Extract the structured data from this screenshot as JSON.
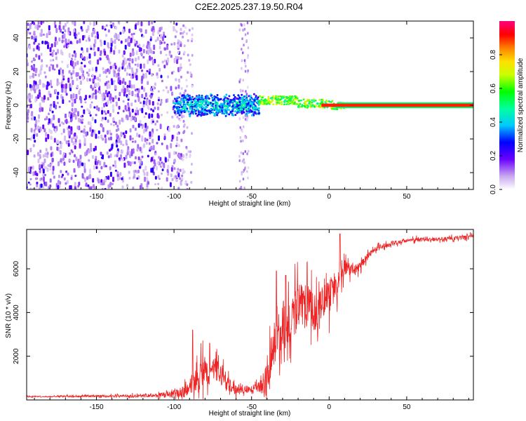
{
  "figure_title": "C2E2.2025.237.19.50.R04",
  "chart_data": [
    {
      "type": "heatmap",
      "title": "C2E2.2025.237.19.50.R04",
      "xlabel": "Height of straight line (km)",
      "ylabel": "Frequency (Hz)",
      "xlim": [
        -195,
        93
      ],
      "ylim": [
        -50,
        50
      ],
      "xticks": [
        -150,
        -100,
        -50,
        0,
        50
      ],
      "yticks": [
        -40,
        -20,
        0,
        20,
        40
      ],
      "colorbar": {
        "label": "Normalized spectral amplitude",
        "range": [
          0.0,
          1.0
        ],
        "ticks": [
          0.0,
          0.2,
          0.4,
          0.6,
          0.8
        ],
        "tick_labels": [
          "0.0",
          "0.2",
          "0.4",
          "0.6",
          "0.8"
        ],
        "colormap": "rainbow: white-violet-blue-cyan-green-yellow-red-magenta"
      },
      "regions": [
        {
          "name": "sparse noise",
          "x_range": [
            -195,
            -100
          ],
          "freq_range": [
            -50,
            50
          ],
          "amplitude": [
            0.05,
            0.25
          ]
        },
        {
          "name": "noise column",
          "x_range": [
            -58,
            -52
          ],
          "freq_range": [
            -50,
            50
          ],
          "amplitude": [
            0.05,
            0.15
          ]
        },
        {
          "name": "cluster",
          "x_range": [
            -100,
            -45
          ],
          "freq_range": [
            -6,
            6
          ],
          "amplitude": [
            0.2,
            0.5
          ]
        },
        {
          "name": "transition",
          "x_range": [
            -45,
            10
          ],
          "freq_range": [
            -3,
            6
          ],
          "amplitude": [
            0.5,
            0.8
          ]
        },
        {
          "name": "steady tone",
          "x_range": [
            10,
            93
          ],
          "freq_range": [
            -1,
            1
          ],
          "amplitude": [
            0.9,
            0.95
          ]
        }
      ]
    },
    {
      "type": "line",
      "xlabel": "Height of straight line (km)",
      "ylabel": "SNR (10 * v/v)",
      "xlim": [
        -195,
        93
      ],
      "ylim": [
        0,
        7800
      ],
      "xticks": [
        -150,
        -100,
        -50,
        0,
        50
      ],
      "yticks": [
        2000,
        4000,
        6000
      ],
      "series": [
        {
          "name": "SNR",
          "color": "#ee2222",
          "x": [
            -195,
            -180,
            -160,
            -140,
            -120,
            -110,
            -100,
            -95,
            -90,
            -88,
            -85,
            -82,
            -78,
            -74,
            -70,
            -66,
            -62,
            -58,
            -55,
            -50,
            -45,
            -42,
            -40,
            -38,
            -35,
            -32,
            -30,
            -27,
            -25,
            -22,
            -20,
            -17,
            -15,
            -12,
            -10,
            -8,
            -5,
            -3,
            0,
            3,
            5,
            7,
            10,
            15,
            20,
            25,
            30,
            35,
            40,
            50,
            60,
            70,
            80,
            93
          ],
          "y": [
            150,
            150,
            170,
            180,
            200,
            220,
            260,
            350,
            500,
            900,
            800,
            1300,
            1100,
            1500,
            1200,
            800,
            500,
            400,
            500,
            450,
            600,
            800,
            1300,
            1800,
            2600,
            3100,
            3500,
            3300,
            3300,
            4000,
            4300,
            4400,
            4300,
            4000,
            3900,
            4600,
            4300,
            4800,
            4700,
            5200,
            5000,
            5500,
            6100,
            5900,
            6100,
            6600,
            6900,
            7000,
            7150,
            7300,
            7350,
            7350,
            7380,
            7500
          ],
          "noise_amplitude": [
            40,
            40,
            60,
            80,
            120,
            150,
            300,
            400,
            600,
            900,
            1000,
            1200,
            1000,
            900,
            800,
            700,
            400,
            300,
            300,
            300,
            500,
            900,
            1300,
            1600,
            1800,
            1800,
            1800,
            1800,
            1800,
            1800,
            1800,
            1800,
            1800,
            1800,
            1800,
            1800,
            1500,
            1500,
            1300,
            1200,
            1000,
            900,
            600,
            400,
            300,
            250,
            200,
            180,
            160,
            150,
            150,
            150,
            150,
            150
          ],
          "spikes": [
            {
              "x": -88,
              "y": 3200
            },
            {
              "x": -77,
              "y": 2600
            },
            {
              "x": -34,
              "y": 5900
            },
            {
              "x": -28,
              "y": 5700
            },
            {
              "x": 7,
              "y": 7600
            }
          ]
        }
      ]
    }
  ]
}
